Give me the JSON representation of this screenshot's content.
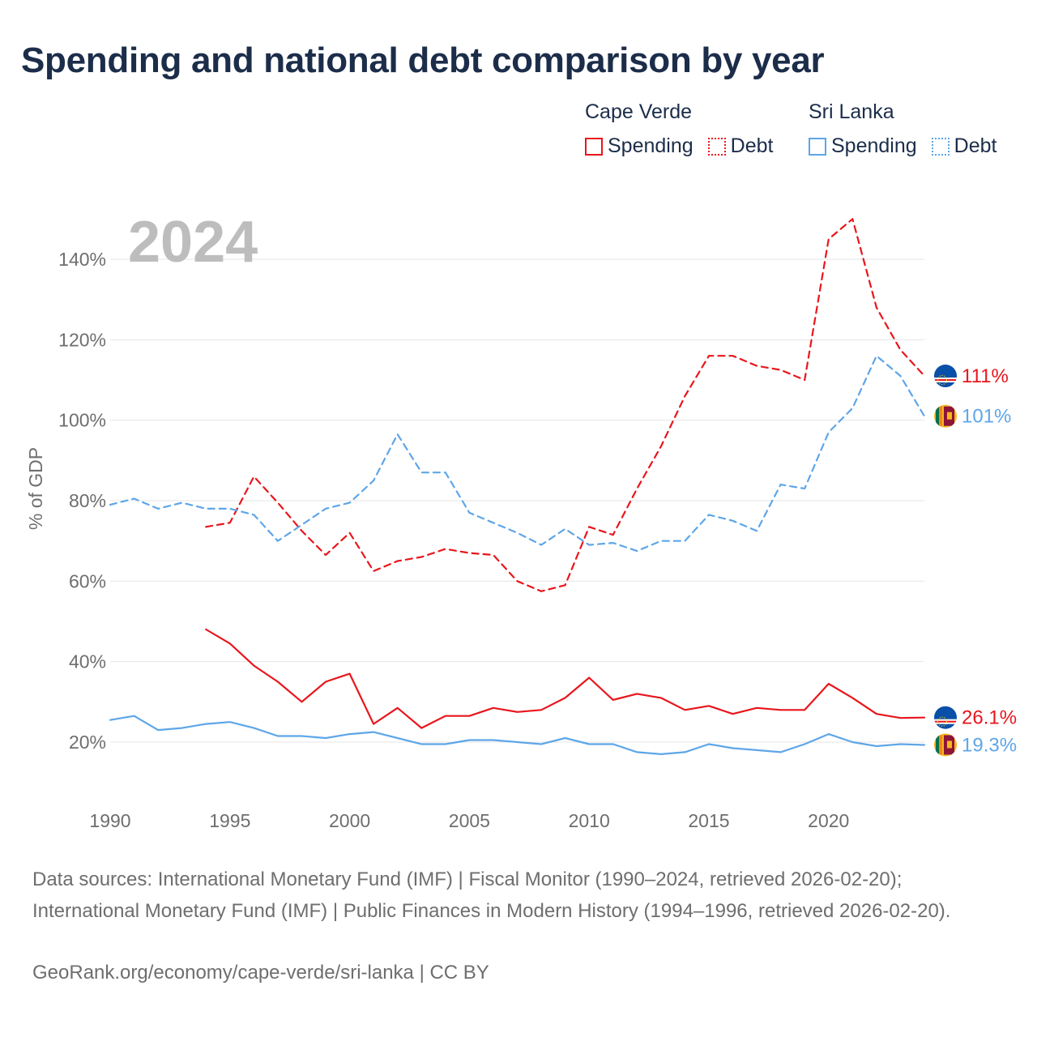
{
  "title": "Spending and national debt comparison by year",
  "legend": {
    "groups": [
      {
        "country": "Cape Verde",
        "spending_label": "Spending",
        "debt_label": "Debt",
        "color": "#e8161c"
      },
      {
        "country": "Sri Lanka",
        "spending_label": "Spending",
        "debt_label": "Debt",
        "color": "#5ea6e8"
      }
    ]
  },
  "footer": {
    "sources": "Data sources: International Monetary Fund (IMF) | Fiscal Monitor (1990–2024, retrieved 2026-02-20); International Monetary Fund (IMF) | Public Finances in Modern History (1994–1996, retrieved 2026-02-20).",
    "credit": "GeoRank.org/economy/cape-verde/sri-lanka | CC BY"
  },
  "chart_data": {
    "type": "line",
    "title": "Spending and national debt comparison by year",
    "year_label": "2024",
    "xlabel": "",
    "ylabel": "% of GDP",
    "xlim": [
      1990,
      2024
    ],
    "ylim": [
      10,
      150
    ],
    "x_ticks": [
      1990,
      1995,
      2000,
      2005,
      2010,
      2015,
      2020
    ],
    "y_ticks": [
      20,
      40,
      60,
      80,
      100,
      120,
      140
    ],
    "y_tick_labels": [
      "20%",
      "40%",
      "60%",
      "80%",
      "100%",
      "120%",
      "140%"
    ],
    "grid": true,
    "series": [
      {
        "name": "Cape Verde Debt",
        "country": "Cape Verde",
        "metric": "Debt",
        "color": "#e8161c",
        "style": "dashed",
        "flag": "cape-verde-flag-icon",
        "end_label": "111%",
        "x": [
          1994,
          1995,
          1996,
          1997,
          1998,
          1999,
          2000,
          2001,
          2002,
          2003,
          2004,
          2005,
          2006,
          2007,
          2008,
          2009,
          2010,
          2011,
          2012,
          2013,
          2014,
          2015,
          2016,
          2017,
          2018,
          2019,
          2020,
          2021,
          2022,
          2023,
          2024
        ],
        "y": [
          73.5,
          74.5,
          86,
          79.5,
          72.5,
          66.5,
          72,
          62.5,
          65,
          66,
          68,
          67,
          66.5,
          60,
          57.5,
          59,
          73.5,
          71.5,
          83,
          93.5,
          106,
          116,
          116,
          113.5,
          112.5,
          110,
          145,
          150,
          128,
          117.5,
          111
        ]
      },
      {
        "name": "Sri Lanka Debt",
        "country": "Sri Lanka",
        "metric": "Debt",
        "color": "#5ea6e8",
        "style": "dashed",
        "flag": "sri-lanka-flag-icon",
        "end_label": "101%",
        "x": [
          1990,
          1991,
          1992,
          1993,
          1994,
          1995,
          1996,
          1997,
          1998,
          1999,
          2000,
          2001,
          2002,
          2003,
          2004,
          2005,
          2006,
          2007,
          2008,
          2009,
          2010,
          2011,
          2012,
          2013,
          2014,
          2015,
          2016,
          2017,
          2018,
          2019,
          2020,
          2021,
          2022,
          2023,
          2024
        ],
        "y": [
          79,
          80.5,
          78,
          79.5,
          78,
          78,
          76.5,
          70,
          74,
          78,
          79.5,
          85,
          96.5,
          87,
          87,
          77,
          74.5,
          72,
          69,
          73,
          69,
          69.5,
          67.5,
          70,
          70,
          76.5,
          75,
          72.5,
          84,
          83,
          97,
          103,
          116,
          111,
          101
        ]
      },
      {
        "name": "Cape Verde Spending",
        "country": "Cape Verde",
        "metric": "Spending",
        "color": "#e8161c",
        "style": "solid",
        "flag": "cape-verde-flag-icon",
        "end_label": "26.1%",
        "x": [
          1994,
          1995,
          1996,
          1997,
          1998,
          1999,
          2000,
          2001,
          2002,
          2003,
          2004,
          2005,
          2006,
          2007,
          2008,
          2009,
          2010,
          2011,
          2012,
          2013,
          2014,
          2015,
          2016,
          2017,
          2018,
          2019,
          2020,
          2021,
          2022,
          2023,
          2024
        ],
        "y": [
          48,
          44.5,
          39,
          35,
          30,
          35,
          37,
          24.5,
          28.5,
          23.5,
          26.5,
          26.5,
          28.5,
          27.5,
          28,
          31,
          36,
          30.5,
          32,
          31,
          28,
          29,
          27,
          28.5,
          28,
          28,
          34.5,
          31,
          27,
          26,
          26.1
        ]
      },
      {
        "name": "Sri Lanka Spending",
        "country": "Sri Lanka",
        "metric": "Spending",
        "color": "#5ea6e8",
        "style": "solid",
        "flag": "sri-lanka-flag-icon",
        "end_label": "19.3%",
        "x": [
          1990,
          1991,
          1992,
          1993,
          1994,
          1995,
          1996,
          1997,
          1998,
          1999,
          2000,
          2001,
          2002,
          2003,
          2004,
          2005,
          2006,
          2007,
          2008,
          2009,
          2010,
          2011,
          2012,
          2013,
          2014,
          2015,
          2016,
          2017,
          2018,
          2019,
          2020,
          2021,
          2022,
          2023,
          2024
        ],
        "y": [
          25.5,
          26.5,
          23,
          23.5,
          24.5,
          25,
          23.5,
          21.5,
          21.5,
          21,
          22,
          22.5,
          21,
          19.5,
          19.5,
          20.5,
          20.5,
          20,
          19.5,
          21,
          19.5,
          19.5,
          17.5,
          17,
          17.5,
          19.5,
          18.5,
          18,
          17.5,
          19.5,
          22,
          20,
          19,
          19.5,
          19.3
        ]
      }
    ]
  }
}
